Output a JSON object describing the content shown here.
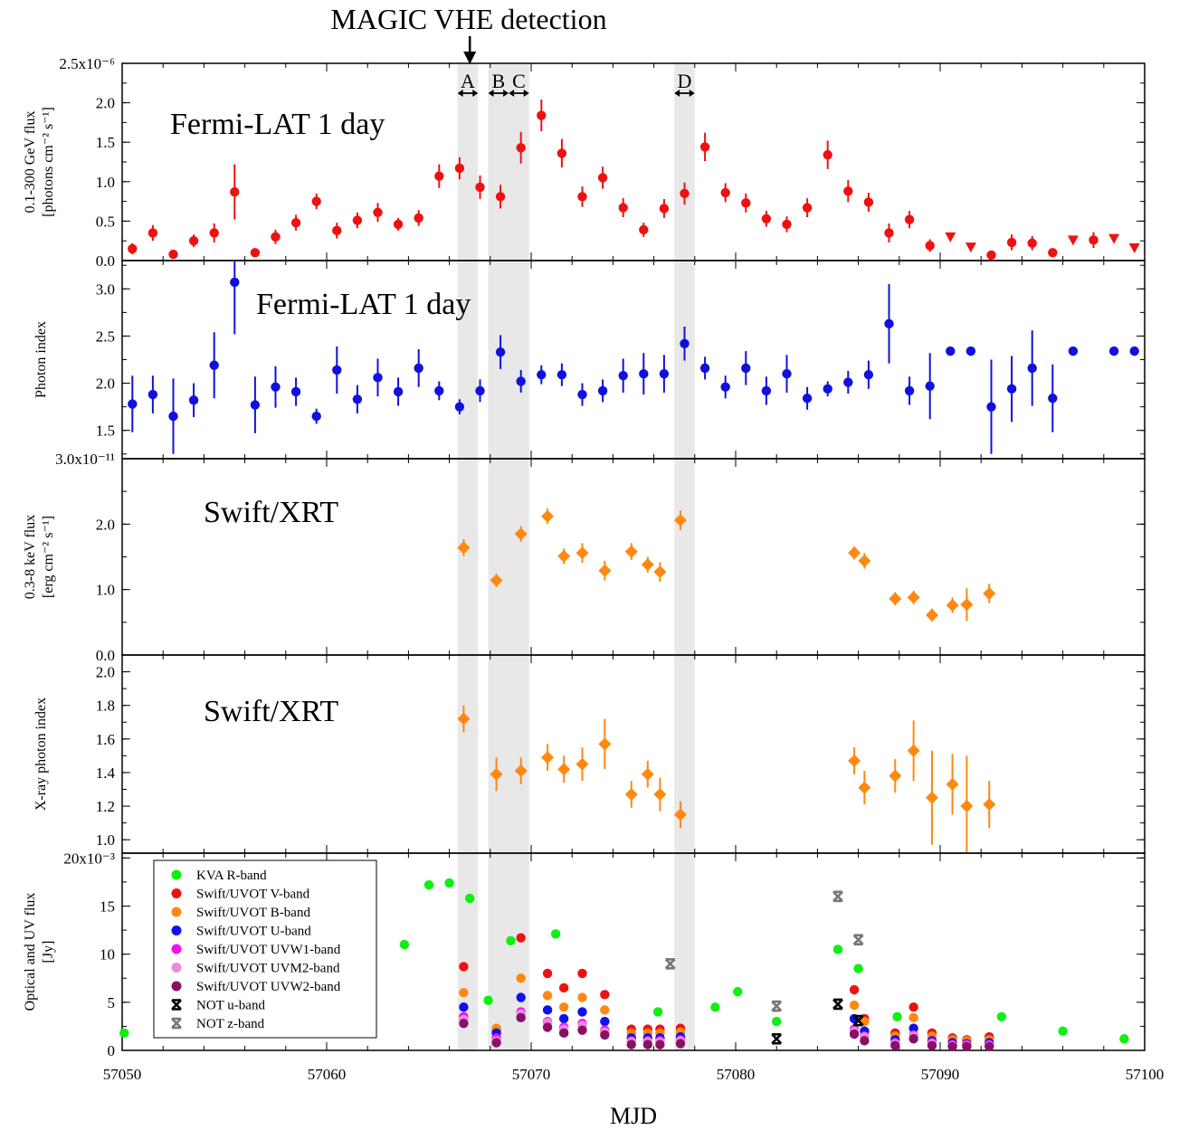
{
  "figure": {
    "header": "MAGIC VHE detection",
    "xlabel": "MJD",
    "x_ticks": [
      "57050",
      "57060",
      "57070",
      "57080",
      "57090",
      "57100"
    ],
    "bands": [
      {
        "label": "A",
        "x0": 57066.4,
        "x1": 57067.4
      },
      {
        "label": "B",
        "x0": 57067.9,
        "x1": 57068.9
      },
      {
        "label": "C",
        "x0": 57068.9,
        "x1": 57069.9
      },
      {
        "label": "D",
        "x0": 57077.0,
        "x1": 57078.0
      }
    ],
    "arrow_mjd": 57067.0
  },
  "chart_data": [
    {
      "type": "scatter",
      "panel_title": "Fermi-LAT 1 day",
      "ylabel_line1": "0.1-300 GeV flux",
      "ylabel_line2": "[photons cm⁻² s⁻¹]",
      "ylim": [
        0,
        2.5
      ],
      "y_ticks": [
        "0.0",
        "0.5",
        "1.0",
        "1.5",
        "2.0",
        "2.5x10⁻⁶"
      ],
      "xlim": [
        57050,
        57100
      ],
      "series": [
        {
          "color": "#ee1111",
          "marker": "circle",
          "x": [
            57050.5,
            57051.5,
            57052.5,
            57053.5,
            57054.5,
            57055.5,
            57056.5,
            57057.5,
            57058.5,
            57059.5,
            57060.5,
            57061.5,
            57062.5,
            57063.5,
            57064.5,
            57065.5,
            57066.5,
            57067.5,
            57068.5,
            57069.5,
            57070.5,
            57071.5,
            57072.5,
            57073.5,
            57074.5,
            57075.5,
            57076.5,
            57077.5,
            57078.5,
            57079.5,
            57080.5,
            57081.5,
            57082.5,
            57083.5,
            57084.5,
            57085.5,
            57086.5,
            57087.5,
            57088.5,
            57089.5,
            57092.5,
            57093.5,
            57094.5,
            57095.5,
            57097.5
          ],
          "y": [
            0.15,
            0.35,
            0.08,
            0.25,
            0.35,
            0.87,
            0.1,
            0.3,
            0.48,
            0.75,
            0.38,
            0.51,
            0.61,
            0.46,
            0.54,
            1.07,
            1.17,
            0.93,
            0.81,
            1.43,
            1.84,
            1.36,
            0.81,
            1.05,
            0.67,
            0.39,
            0.66,
            0.85,
            1.44,
            0.86,
            0.73,
            0.53,
            0.46,
            0.67,
            1.34,
            0.88,
            0.74,
            0.35,
            0.52,
            0.19,
            0.07,
            0.23,
            0.22,
            0.1,
            0.26
          ],
          "yerr": [
            0.07,
            0.1,
            0.04,
            0.08,
            0.12,
            0.35,
            0.03,
            0.09,
            0.1,
            0.1,
            0.1,
            0.1,
            0.12,
            0.08,
            0.1,
            0.15,
            0.14,
            0.15,
            0.15,
            0.2,
            0.2,
            0.18,
            0.13,
            0.14,
            0.12,
            0.09,
            0.12,
            0.14,
            0.18,
            0.12,
            0.12,
            0.1,
            0.1,
            0.12,
            0.18,
            0.14,
            0.12,
            0.12,
            0.11,
            0.08,
            0.04,
            0.1,
            0.09,
            0.04,
            0.1
          ]
        },
        {
          "name": "upper limits",
          "color": "#ee1111",
          "marker": "triangle-down",
          "x": [
            57090.5,
            57091.5,
            57096.5,
            57098.5,
            57099.5
          ],
          "y": [
            0.3,
            0.17,
            0.26,
            0.28,
            0.16
          ]
        }
      ]
    },
    {
      "type": "scatter",
      "panel_title": "Fermi-LAT 1 day",
      "ylabel_line1": "Photon index",
      "ylim": [
        1.2,
        3.3
      ],
      "y_ticks": [
        "1.5",
        "2.0",
        "2.5",
        "3.0"
      ],
      "y_tick_values": [
        1.5,
        2.0,
        2.5,
        3.0
      ],
      "xlim": [
        57050,
        57100
      ],
      "series": [
        {
          "color": "#1111dd",
          "marker": "circle",
          "x": [
            57050.5,
            57051.5,
            57052.5,
            57053.5,
            57054.5,
            57055.5,
            57056.5,
            57057.5,
            57058.5,
            57059.5,
            57060.5,
            57061.5,
            57062.5,
            57063.5,
            57064.5,
            57065.5,
            57066.5,
            57067.5,
            57068.5,
            57069.5,
            57070.5,
            57071.5,
            57072.5,
            57073.5,
            57074.5,
            57075.5,
            57076.5,
            57077.5,
            57078.5,
            57079.5,
            57080.5,
            57081.5,
            57082.5,
            57083.5,
            57084.5,
            57085.5,
            57086.5,
            57087.5,
            57088.5,
            57089.5,
            57090.5,
            57091.5,
            57092.5,
            57093.5,
            57094.5,
            57095.5,
            57096.5,
            57098.5,
            57099.5
          ],
          "y": [
            1.78,
            1.88,
            1.65,
            1.82,
            2.19,
            3.07,
            1.77,
            1.96,
            1.91,
            1.65,
            2.14,
            1.83,
            2.06,
            1.91,
            2.16,
            1.92,
            1.75,
            1.92,
            2.33,
            2.02,
            2.09,
            2.09,
            1.88,
            1.92,
            2.08,
            2.1,
            2.1,
            2.42,
            2.16,
            1.96,
            2.16,
            1.92,
            2.1,
            1.84,
            1.94,
            2.01,
            2.09,
            2.63,
            1.92,
            1.97,
            2.34,
            2.34,
            1.75,
            1.94,
            2.16,
            1.84,
            2.34,
            2.34,
            2.34
          ],
          "yerr": [
            0.3,
            0.2,
            0.4,
            0.18,
            0.35,
            0.55,
            0.3,
            0.22,
            0.15,
            0.08,
            0.25,
            0.15,
            0.2,
            0.15,
            0.2,
            0.1,
            0.08,
            0.12,
            0.18,
            0.12,
            0.1,
            0.12,
            0.12,
            0.12,
            0.18,
            0.22,
            0.2,
            0.18,
            0.12,
            0.12,
            0.18,
            0.15,
            0.2,
            0.12,
            0.08,
            0.12,
            0.15,
            0.42,
            0.15,
            0.35,
            0,
            0,
            0.5,
            0.35,
            0.4,
            0.36,
            0,
            0,
            0
          ]
        }
      ]
    },
    {
      "type": "scatter",
      "panel_title": "Swift/XRT",
      "ylabel_line1": "0.3-8 keV flux",
      "ylabel_line2": "[erg cm⁻² s⁻¹]",
      "ylim": [
        0,
        3.0
      ],
      "y_ticks": [
        "0.0",
        "1.0",
        "2.0",
        "3.0x10⁻¹¹"
      ],
      "y_tick_values": [
        0,
        1,
        2,
        3
      ],
      "xlim": [
        57050,
        57100
      ],
      "series": [
        {
          "color": "#ff8811",
          "marker": "diamond",
          "x": [
            57066.7,
            57068.3,
            57069.5,
            57070.8,
            57071.6,
            57072.5,
            57073.6,
            57074.9,
            57075.7,
            57076.3,
            57077.3,
            57085.8,
            57086.3,
            57087.8,
            57088.7,
            57089.6,
            57090.6,
            57091.3,
            57092.4
          ],
          "y": [
            1.64,
            1.14,
            1.85,
            2.12,
            1.51,
            1.56,
            1.29,
            1.58,
            1.38,
            1.27,
            2.06,
            1.56,
            1.44,
            0.86,
            0.88,
            0.61,
            0.76,
            0.77,
            0.94
          ],
          "yerr": [
            0.13,
            0.1,
            0.12,
            0.12,
            0.12,
            0.15,
            0.15,
            0.13,
            0.12,
            0.15,
            0.15,
            0.1,
            0.12,
            0.1,
            0.1,
            0.1,
            0.12,
            0.25,
            0.15
          ]
        }
      ]
    },
    {
      "type": "scatter",
      "panel_title": "Swift/XRT",
      "ylabel_line1": "X-ray photon index",
      "ylim": [
        0.92,
        2.1
      ],
      "y_ticks": [
        "1.0",
        "1.2",
        "1.4",
        "1.6",
        "1.8",
        "2.0"
      ],
      "y_tick_values": [
        1.0,
        1.2,
        1.4,
        1.6,
        1.8,
        2.0
      ],
      "xlim": [
        57050,
        57100
      ],
      "series": [
        {
          "color": "#ff8811",
          "marker": "diamond",
          "x": [
            57066.7,
            57068.3,
            57069.5,
            57070.8,
            57071.6,
            57072.5,
            57073.6,
            57074.9,
            57075.7,
            57076.3,
            57077.3,
            57085.8,
            57086.3,
            57087.8,
            57088.7,
            57089.6,
            57090.6,
            57091.3,
            57092.4
          ],
          "y": [
            1.72,
            1.39,
            1.41,
            1.49,
            1.42,
            1.45,
            1.57,
            1.27,
            1.39,
            1.27,
            1.15,
            1.47,
            1.31,
            1.38,
            1.53,
            1.25,
            1.33,
            1.2,
            1.21
          ],
          "yerr": [
            0.08,
            0.1,
            0.08,
            0.08,
            0.08,
            0.1,
            0.15,
            0.08,
            0.08,
            0.1,
            0.08,
            0.08,
            0.1,
            0.1,
            0.18,
            0.28,
            0.18,
            0.3,
            0.14
          ]
        }
      ]
    },
    {
      "type": "scatter",
      "ylabel_line1": "Optical and UV flux",
      "ylabel_line2": "[Jy]",
      "ylim": [
        0,
        20.5
      ],
      "y_ticks": [
        "0",
        "5",
        "10",
        "15",
        "20x10⁻³"
      ],
      "y_tick_values": [
        0,
        5,
        10,
        15,
        20
      ],
      "xlim": [
        57050,
        57100
      ],
      "series": [
        {
          "name": "KVA R-band",
          "color": "#11ee11",
          "marker": "circle",
          "x": [
            57050.1,
            57063.8,
            57065.0,
            57066.0,
            57067.0,
            57067.9,
            57069.0,
            57071.2,
            57076.2,
            57079.0,
            57080.1,
            57082.0,
            57085.0,
            57086.0,
            57087.9,
            57093.0,
            57096.0,
            57099.0
          ],
          "y": [
            1.8,
            11.0,
            17.2,
            17.4,
            15.8,
            5.2,
            11.4,
            12.1,
            4.0,
            4.5,
            6.1,
            3.0,
            10.5,
            8.5,
            3.5,
            3.5,
            2.0,
            1.2
          ]
        },
        {
          "name": "Swift/UVOT V-band",
          "color": "#ee1111",
          "marker": "circle",
          "x": [
            57066.7,
            57068.3,
            57069.5,
            57070.8,
            57071.6,
            57072.5,
            57073.6,
            57074.9,
            57075.7,
            57076.3,
            57077.3,
            57085.8,
            57086.3,
            57087.8,
            57088.7,
            57089.6,
            57090.6,
            57091.3,
            57092.4
          ],
          "y": [
            8.7,
            2.0,
            11.7,
            8.0,
            6.5,
            8.0,
            5.8,
            2.2,
            2.2,
            2.2,
            2.3,
            6.3,
            3.3,
            1.8,
            4.5,
            1.8,
            1.3,
            1.1,
            1.4
          ]
        },
        {
          "name": "Swift/UVOT B-band",
          "color": "#ff8811",
          "marker": "circle",
          "x": [
            57066.7,
            57068.3,
            57069.5,
            57070.8,
            57071.6,
            57072.5,
            57073.6,
            57074.9,
            57075.7,
            57076.3,
            57077.3,
            57085.8,
            57086.3,
            57087.8,
            57088.7,
            57089.6,
            57090.6,
            57091.3,
            57092.4
          ],
          "y": [
            6.0,
            2.3,
            7.5,
            5.7,
            4.5,
            5.5,
            4.2,
            1.8,
            1.8,
            1.8,
            1.9,
            4.7,
            3.0,
            1.5,
            3.4,
            1.5,
            1.1,
            1.0,
            1.1
          ]
        },
        {
          "name": "Swift/UVOT U-band",
          "color": "#1111ee",
          "marker": "circle",
          "x": [
            57066.7,
            57068.3,
            57069.5,
            57070.8,
            57071.6,
            57072.5,
            57073.6,
            57074.9,
            57075.7,
            57076.3,
            57077.3,
            57085.8,
            57086.3,
            57087.8,
            57088.7,
            57089.6,
            57090.6,
            57091.3,
            57092.4
          ],
          "y": [
            4.5,
            1.8,
            5.5,
            4.2,
            3.3,
            4.0,
            3.0,
            1.3,
            1.3,
            1.3,
            1.4,
            3.3,
            2.0,
            1.1,
            2.3,
            1.0,
            0.8,
            0.7,
            0.8
          ]
        },
        {
          "name": "Swift/UVOT UVW1-band",
          "color": "#ee11ee",
          "marker": "circle",
          "x": [
            57066.7,
            57068.3,
            57069.5,
            57070.8,
            57071.6,
            57072.5,
            57073.6,
            57074.9,
            57075.7,
            57076.3,
            57077.3,
            57085.8,
            57086.3,
            57087.8,
            57088.7,
            57089.6,
            57090.6,
            57091.3,
            57092.4
          ],
          "y": [
            3.5,
            1.3,
            4.0,
            3.0,
            2.4,
            2.8,
            2.1,
            1.0,
            1.0,
            1.0,
            1.1,
            2.2,
            1.5,
            0.8,
            1.6,
            0.8,
            0.6,
            0.6,
            0.6
          ]
        },
        {
          "name": "Swift/UVOT UVM2-band",
          "color": "#ee88dd",
          "marker": "circle",
          "x": [
            57066.7,
            57068.3,
            57069.5,
            57070.8,
            57071.6,
            57072.5,
            57073.6,
            57074.9,
            57075.7,
            57076.3,
            57077.3,
            57085.8,
            57086.3,
            57087.8,
            57088.7,
            57089.6,
            57090.6,
            57091.3,
            57092.4
          ],
          "y": [
            3.2,
            1.0,
            3.8,
            2.9,
            2.2,
            2.6,
            1.9,
            0.9,
            0.9,
            0.9,
            1.0,
            2.0,
            1.4,
            0.7,
            1.5,
            0.7,
            0.5,
            0.5,
            0.5
          ]
        },
        {
          "name": "Swift/UVOT UVW2-band",
          "color": "#881166",
          "marker": "circle",
          "x": [
            57066.7,
            57068.3,
            57069.5,
            57070.8,
            57071.6,
            57072.5,
            57073.6,
            57074.9,
            57075.7,
            57076.3,
            57077.3,
            57085.8,
            57086.3,
            57087.8,
            57088.7,
            57089.6,
            57090.6,
            57091.3,
            57092.4
          ],
          "y": [
            2.8,
            0.8,
            3.4,
            2.4,
            1.8,
            2.1,
            1.6,
            0.6,
            0.6,
            0.6,
            0.7,
            1.7,
            1.0,
            0.5,
            1.2,
            0.5,
            0.4,
            0.4,
            0.4
          ]
        },
        {
          "name": "NOT u-band",
          "color": "#000000",
          "marker": "star",
          "x": [
            57082.0,
            57085.0,
            57086.0
          ],
          "y": [
            1.2,
            4.8,
            3.1
          ]
        },
        {
          "name": "NOT z-band",
          "color": "#777777",
          "marker": "star",
          "x": [
            57076.8,
            57082.0,
            57085.0,
            57086.0
          ],
          "y": [
            9.0,
            4.6,
            16.0,
            11.5
          ]
        }
      ]
    }
  ]
}
